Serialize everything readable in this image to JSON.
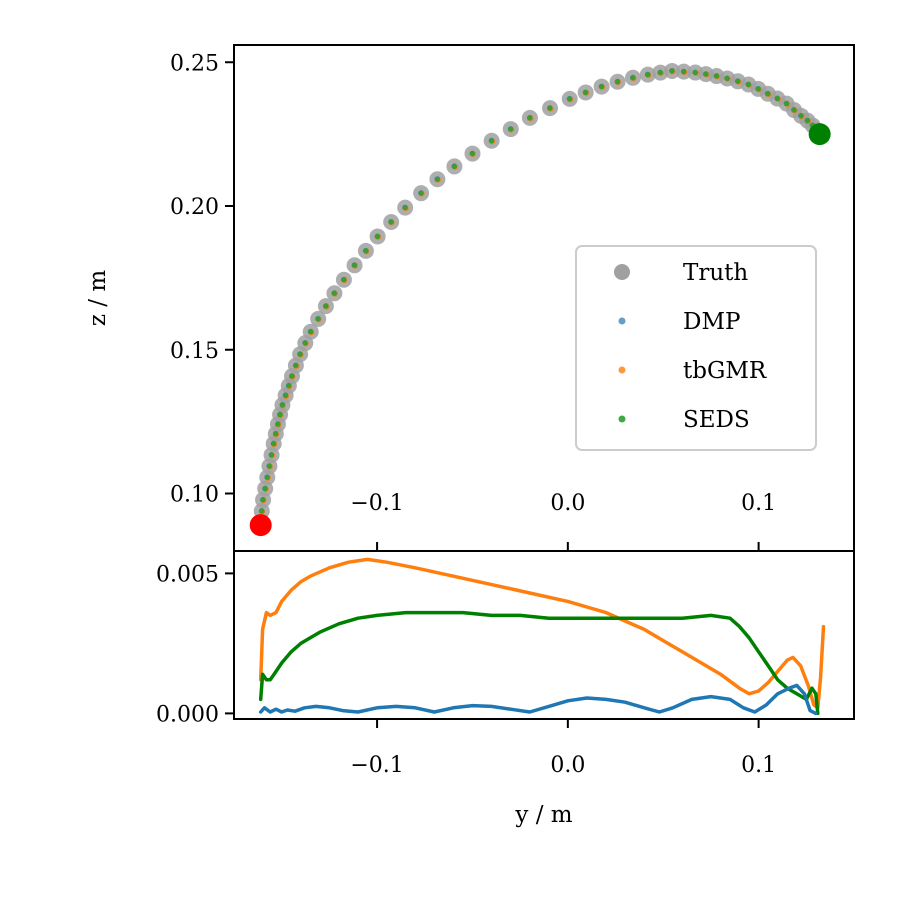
{
  "chart_data": [
    {
      "type": "scatter",
      "name": "trajectory",
      "xlabel": "",
      "ylabel": "z / m",
      "xlim": [
        -0.175,
        0.15
      ],
      "ylim": [
        0.08,
        0.256
      ],
      "xticks": [
        -0.1,
        0.0,
        0.1
      ],
      "xtick_labels": [
        "−0.1",
        "0.0",
        "0.1"
      ],
      "yticks": [
        0.1,
        0.15,
        0.2,
        0.25
      ],
      "ytick_labels": [
        "0.10",
        "0.15",
        "0.20",
        "0.25"
      ],
      "legend": {
        "position": "center-right",
        "entries": [
          "Truth",
          "DMP",
          "tbGMR",
          "SEDS"
        ]
      },
      "curve": {
        "comment": "Shared trajectory (y, z) followed by Truth, DMP, tbGMR and SEDS",
        "x": [
          -0.161,
          -0.16,
          -0.158,
          -0.156,
          -0.154,
          -0.152,
          -0.15,
          -0.147,
          -0.144,
          -0.14,
          -0.135,
          -0.128,
          -0.12,
          -0.11,
          -0.099,
          -0.086,
          -0.071,
          -0.055,
          -0.037,
          -0.019,
          0.0,
          0.015,
          0.03,
          0.044,
          0.055,
          0.066,
          0.076,
          0.086,
          0.096,
          0.105,
          0.114,
          0.121,
          0.127,
          0.131,
          0.132
        ],
        "y": [
          0.09,
          0.097,
          0.104,
          0.111,
          0.118,
          0.124,
          0.13,
          0.136,
          0.142,
          0.149,
          0.156,
          0.164,
          0.172,
          0.181,
          0.19,
          0.199,
          0.208,
          0.216,
          0.224,
          0.231,
          0.237,
          0.241,
          0.244,
          0.246,
          0.247,
          0.2465,
          0.2455,
          0.244,
          0.242,
          0.239,
          0.236,
          0.232,
          0.229,
          0.226,
          0.225
        ]
      },
      "start_point": {
        "x": -0.161,
        "y": 0.089,
        "color": "#ff0000"
      },
      "end_point": {
        "x": 0.132,
        "y": 0.225,
        "color": "#008000"
      },
      "series_colors": {
        "Truth": "#a0a0a0",
        "DMP": "#1f77b4",
        "tbGMR": "#ff7f0e",
        "SEDS": "#2ca02c"
      }
    },
    {
      "type": "line",
      "name": "error",
      "xlabel": "y / m",
      "ylabel": "",
      "xlim": [
        -0.175,
        0.15
      ],
      "ylim": [
        -0.0002,
        0.0058
      ],
      "xticks": [
        -0.1,
        0.0,
        0.1
      ],
      "xtick_labels": [
        "−0.1",
        "0.0",
        "0.1"
      ],
      "yticks": [
        0.0,
        0.005
      ],
      "ytick_labels": [
        "0.000",
        "0.005"
      ],
      "series": [
        {
          "name": "tbGMR",
          "color": "#ff7f0e",
          "x": [
            -0.161,
            -0.16,
            -0.158,
            -0.156,
            -0.153,
            -0.15,
            -0.145,
            -0.14,
            -0.135,
            -0.125,
            -0.115,
            -0.105,
            -0.095,
            -0.08,
            -0.06,
            -0.04,
            -0.02,
            0.0,
            0.01,
            0.02,
            0.03,
            0.04,
            0.05,
            0.06,
            0.07,
            0.08,
            0.09,
            0.095,
            0.1,
            0.105,
            0.11,
            0.115,
            0.118,
            0.122,
            0.126,
            0.129,
            0.131,
            0.1325,
            0.134
          ],
          "values": [
            0.0012,
            0.003,
            0.0036,
            0.0035,
            0.0036,
            0.004,
            0.0044,
            0.0047,
            0.0049,
            0.0052,
            0.0054,
            0.0055,
            0.0054,
            0.0052,
            0.0049,
            0.0046,
            0.0043,
            0.004,
            0.0038,
            0.0036,
            0.0033,
            0.003,
            0.0026,
            0.0022,
            0.0018,
            0.0014,
            0.0009,
            0.0007,
            0.0008,
            0.0011,
            0.0015,
            0.0019,
            0.002,
            0.0017,
            0.001,
            0.0003,
            0.0002,
            0.0013,
            0.0031
          ]
        },
        {
          "name": "SEDS",
          "color": "#008000",
          "x": [
            -0.161,
            -0.16,
            -0.158,
            -0.156,
            -0.154,
            -0.15,
            -0.145,
            -0.14,
            -0.13,
            -0.12,
            -0.11,
            -0.1,
            -0.085,
            -0.07,
            -0.055,
            -0.04,
            -0.025,
            -0.01,
            0.0,
            0.02,
            0.04,
            0.06,
            0.075,
            0.085,
            0.09,
            0.095,
            0.1,
            0.105,
            0.11,
            0.115,
            0.12,
            0.125,
            0.128,
            0.13,
            0.131
          ],
          "values": [
            0.0005,
            0.0014,
            0.0012,
            0.0012,
            0.0014,
            0.0018,
            0.0022,
            0.0025,
            0.0029,
            0.0032,
            0.0034,
            0.0035,
            0.0036,
            0.0036,
            0.0036,
            0.0035,
            0.0035,
            0.0034,
            0.0034,
            0.0034,
            0.0034,
            0.0034,
            0.0035,
            0.0034,
            0.0031,
            0.0027,
            0.0022,
            0.0017,
            0.0012,
            0.0009,
            0.0007,
            0.0005,
            0.0009,
            0.0007,
            0.0
          ]
        },
        {
          "name": "DMP",
          "color": "#1f77b4",
          "x": [
            -0.161,
            -0.159,
            -0.156,
            -0.153,
            -0.15,
            -0.147,
            -0.143,
            -0.138,
            -0.132,
            -0.125,
            -0.118,
            -0.11,
            -0.1,
            -0.09,
            -0.08,
            -0.07,
            -0.06,
            -0.05,
            -0.04,
            -0.03,
            -0.02,
            -0.01,
            0.0,
            0.01,
            0.02,
            0.03,
            0.04,
            0.048,
            0.055,
            0.065,
            0.075,
            0.085,
            0.092,
            0.098,
            0.104,
            0.11,
            0.116,
            0.12,
            0.124,
            0.127,
            0.13
          ],
          "values": [
            5e-05,
            0.0002,
            5e-05,
            0.00015,
            5e-05,
            0.00012,
            8e-05,
            0.0002,
            0.00025,
            0.0002,
            0.0001,
            5e-05,
            0.0002,
            0.00025,
            0.0002,
            5e-05,
            0.0002,
            0.00028,
            0.00025,
            0.00015,
            5e-05,
            0.00025,
            0.00045,
            0.00055,
            0.0005,
            0.0004,
            0.0002,
            5e-05,
            0.0002,
            0.0005,
            0.0006,
            0.0005,
            0.0002,
            5e-05,
            0.0003,
            0.0007,
            0.0009,
            0.001,
            0.0007,
            0.0001,
            0.0
          ]
        }
      ]
    }
  ]
}
